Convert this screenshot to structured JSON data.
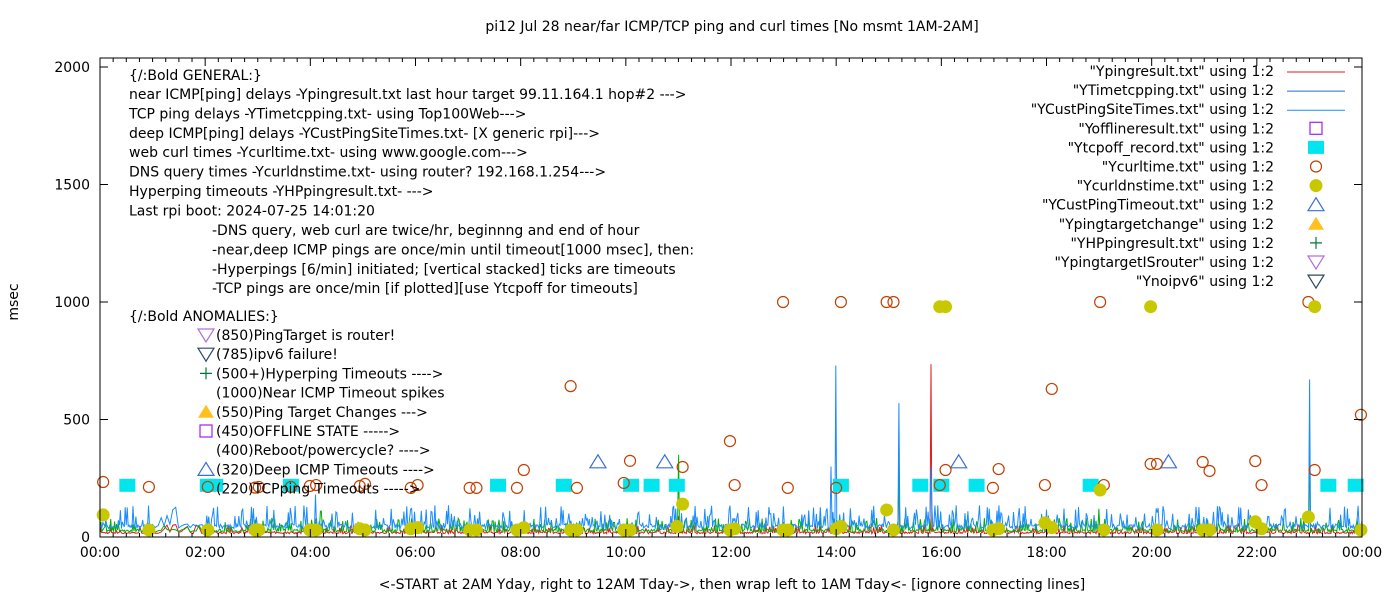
{
  "chart_data": {
    "type": "line",
    "title": "pi12 Jul 28  near/far ICMP/TCP ping and curl times [No msmt 1AM-2AM]",
    "xlabel": "<-START at 2AM Yday, right to 12AM Tday->, then wrap left to 1AM Tday<- [ignore connecting lines]",
    "ylabel": "msec",
    "xlim_hours": [
      0,
      24
    ],
    "ylim": [
      0,
      2000
    ],
    "xticks": [
      "00:00",
      "02:00",
      "04:00",
      "06:00",
      "08:00",
      "10:00",
      "12:00",
      "14:00",
      "16:00",
      "18:00",
      "20:00",
      "22:00",
      "00:00"
    ],
    "yticks": [
      0,
      500,
      1000,
      1500,
      2000
    ],
    "grid": false,
    "legend_placement": "top-right",
    "legend": [
      {
        "label": "\"Ypingresult.txt\" using 1:2",
        "style": "line",
        "color": "#e41a1c"
      },
      {
        "label": "\"YTimetcpping.txt\" using 1:2",
        "style": "line",
        "color": "#1a6fd6"
      },
      {
        "label": "\"YCustPingSiteTimes.txt\" using 1:2",
        "style": "line",
        "color": "#1a8cff"
      },
      {
        "label": "\"Yofflineresult.txt\" using 1:2",
        "style": "open-square",
        "color": "#a020f0"
      },
      {
        "label": "\"Ytcpoff_record.txt\" using 1:2",
        "style": "filled-square",
        "color": "#00e5ee"
      },
      {
        "label": "\"Ycurltime.txt\" using 1:2",
        "style": "open-circle",
        "color": "#c04000"
      },
      {
        "label": "\"Ycurldnstime.txt\" using 1:2",
        "style": "filled-circle",
        "color": "#c8c800"
      },
      {
        "label": "\"YCustPingTimeout.txt\" using 1:2",
        "style": "open-triangle",
        "color": "#3a6fd8"
      },
      {
        "label": "\"Ypingtargetchange\" using 1:2",
        "style": "filled-triangle",
        "color": "#ffc020"
      },
      {
        "label": "\"YHPpingresult.txt\" using 1:2",
        "style": "plus",
        "color": "#007a3a"
      },
      {
        "label": "\"YpingtargetISrouter\" using 1:2",
        "style": "open-down-triangle",
        "color": "#b070e0"
      },
      {
        "label": "\"Ynoipv6\" using 1:2",
        "style": "open-down-triangle",
        "color": "#2a4a60"
      }
    ],
    "general_label": "{/:Bold GENERAL:}",
    "general_notes": [
      "near ICMP[ping] delays -Ypingresult.txt last hour target 99.11.164.1 hop#2 --->",
      "TCP ping delays -YTimetcpping.txt- using Top100Web--->",
      "deep ICMP[ping] delays -YCustPingSiteTimes.txt- [X generic rpi]--->",
      "web curl times -Ycurltime.txt- using www.google.com--->",
      "DNS query times -Ycurldnstime.txt- using router? 192.168.1.254--->",
      "Hyperping timeouts -YHPpingresult.txt- --->",
      "Last rpi boot: 2024-07-25 14:01:20"
    ],
    "general_subnotes": [
      "-DNS query, web curl are twice/hr, beginnng and end of hour",
      "-near,deep ICMP pings are once/min until timeout[1000 msec], then:",
      "  -Hyperpings [6/min] initiated; [vertical stacked] ticks are timeouts",
      "-TCP pings are once/min [if plotted][use Ytcpoff for timeouts]"
    ],
    "anomalies_label": "{/:Bold ANOMALIES:}",
    "anomalies": [
      {
        "text": "(850)PingTarget is router!",
        "marker": "open-down-triangle",
        "color": "#b070e0"
      },
      {
        "text": "(785)ipv6 failure!",
        "marker": "open-down-triangle",
        "color": "#2a4a60"
      },
      {
        "text": "(500+)Hyperping Timeouts ---->",
        "marker": "plus",
        "color": "#007a3a"
      },
      {
        "text": "(1000)Near ICMP Timeout spikes",
        "marker": "none",
        "color": ""
      },
      {
        "text": "(550)Ping Target Changes --->",
        "marker": "filled-triangle",
        "color": "#ffc020"
      },
      {
        "text": "(450)OFFLINE STATE ----->",
        "marker": "open-square",
        "color": "#a020f0"
      },
      {
        "text": "(400)Reboot/powercycle? ---->",
        "marker": "none",
        "color": ""
      },
      {
        "text": "(320)Deep ICMP Timeouts ---->",
        "marker": "open-triangle",
        "color": "#3a6fd8"
      },
      {
        "text": "(220)TCPping Timeouts ----->",
        "marker": "none",
        "color": ""
      }
    ],
    "series_lines": [
      {
        "file": "Ypingresult.txt",
        "color": "#e41a1c",
        "baseline_ms": 20,
        "spikes": [
          [
            15.2,
            300
          ],
          [
            15.8,
            735
          ],
          [
            4.1,
            60
          ],
          [
            11.0,
            90
          ]
        ]
      },
      {
        "file": "YHPpingresult.txt",
        "color": "#00b000",
        "baseline_ms": 30,
        "spikes": [
          [
            11.0,
            350
          ],
          [
            15.2,
            310
          ],
          [
            23.0,
            420
          ],
          [
            19.0,
            120
          ],
          [
            4.2,
            110
          ]
        ]
      },
      {
        "file": "YCustPingSiteTimes.txt",
        "color": "#1a8cff",
        "baseline_ms": 50,
        "spikes": [
          [
            14.0,
            730
          ],
          [
            15.2,
            570
          ],
          [
            23.0,
            670
          ],
          [
            15.8,
            300
          ],
          [
            4.1,
            180
          ],
          [
            13.9,
            300
          ]
        ]
      }
    ],
    "curl_points": [
      [
        0.06,
        234
      ],
      [
        0.93,
        213
      ],
      [
        2.05,
        213
      ],
      [
        2.95,
        210
      ],
      [
        3.02,
        213
      ],
      [
        3.63,
        213
      ],
      [
        3.99,
        217
      ],
      [
        4.11,
        221
      ],
      [
        4.94,
        217
      ],
      [
        5.04,
        226
      ],
      [
        5.91,
        209
      ],
      [
        6.04,
        221
      ],
      [
        7.03,
        209
      ],
      [
        7.16,
        209
      ],
      [
        7.93,
        209
      ],
      [
        8.06,
        285
      ],
      [
        8.95,
        642
      ],
      [
        9.07,
        209
      ],
      [
        9.96,
        230
      ],
      [
        10.08,
        324
      ],
      [
        11.08,
        298
      ],
      [
        11.98,
        408
      ],
      [
        12.07,
        221
      ],
      [
        12.99,
        1000
      ],
      [
        13.08,
        209
      ],
      [
        14.0,
        209
      ],
      [
        14.09,
        1000
      ],
      [
        14.96,
        1000
      ],
      [
        15.09,
        1000
      ],
      [
        15.97,
        221
      ],
      [
        16.08,
        285
      ],
      [
        16.98,
        209
      ],
      [
        17.09,
        289
      ],
      [
        17.97,
        221
      ],
      [
        18.1,
        630
      ],
      [
        19.02,
        1000
      ],
      [
        19.09,
        221
      ],
      [
        19.98,
        311
      ],
      [
        20.1,
        311
      ],
      [
        20.97,
        319
      ],
      [
        21.1,
        281
      ],
      [
        21.97,
        323
      ],
      [
        22.09,
        221
      ],
      [
        22.98,
        1000
      ],
      [
        23.1,
        285
      ],
      [
        23.98,
        520
      ]
    ],
    "dns_points": [
      [
        0.06,
        94
      ],
      [
        0.93,
        30
      ],
      [
        2.05,
        30
      ],
      [
        2.95,
        30
      ],
      [
        3.02,
        30
      ],
      [
        3.99,
        30
      ],
      [
        4.11,
        30
      ],
      [
        4.94,
        35
      ],
      [
        5.04,
        30
      ],
      [
        5.91,
        35
      ],
      [
        6.04,
        40
      ],
      [
        7.03,
        30
      ],
      [
        7.16,
        30
      ],
      [
        7.93,
        30
      ],
      [
        8.06,
        40
      ],
      [
        8.95,
        30
      ],
      [
        9.07,
        30
      ],
      [
        9.96,
        30
      ],
      [
        10.08,
        30
      ],
      [
        10.97,
        45
      ],
      [
        11.08,
        140
      ],
      [
        11.98,
        30
      ],
      [
        12.07,
        35
      ],
      [
        12.99,
        30
      ],
      [
        13.08,
        30
      ],
      [
        14.0,
        35
      ],
      [
        14.09,
        45
      ],
      [
        14.96,
        115
      ],
      [
        15.09,
        30
      ],
      [
        15.97,
        980
      ],
      [
        16.08,
        980
      ],
      [
        16.98,
        30
      ],
      [
        17.09,
        35
      ],
      [
        17.97,
        60
      ],
      [
        18.1,
        40
      ],
      [
        19.02,
        200
      ],
      [
        19.09,
        30
      ],
      [
        19.98,
        980
      ],
      [
        20.1,
        30
      ],
      [
        20.97,
        30
      ],
      [
        21.1,
        30
      ],
      [
        21.97,
        65
      ],
      [
        22.09,
        35
      ],
      [
        22.98,
        85
      ],
      [
        23.1,
        980
      ],
      [
        23.98,
        30
      ]
    ],
    "tcpoff_points": [
      [
        0.52,
        220
      ],
      [
        2.05,
        220
      ],
      [
        2.19,
        220
      ],
      [
        3.63,
        220
      ],
      [
        7.57,
        220
      ],
      [
        8.82,
        220
      ],
      [
        10.1,
        220
      ],
      [
        10.49,
        220
      ],
      [
        10.97,
        220
      ],
      [
        14.09,
        220
      ],
      [
        15.6,
        220
      ],
      [
        16.0,
        220
      ],
      [
        16.67,
        220
      ],
      [
        18.84,
        220
      ],
      [
        23.36,
        220
      ],
      [
        23.88,
        220
      ]
    ],
    "deep_timeout_points": [
      [
        9.47,
        320
      ],
      [
        10.74,
        320
      ],
      [
        16.33,
        320
      ],
      [
        20.32,
        320
      ]
    ]
  }
}
